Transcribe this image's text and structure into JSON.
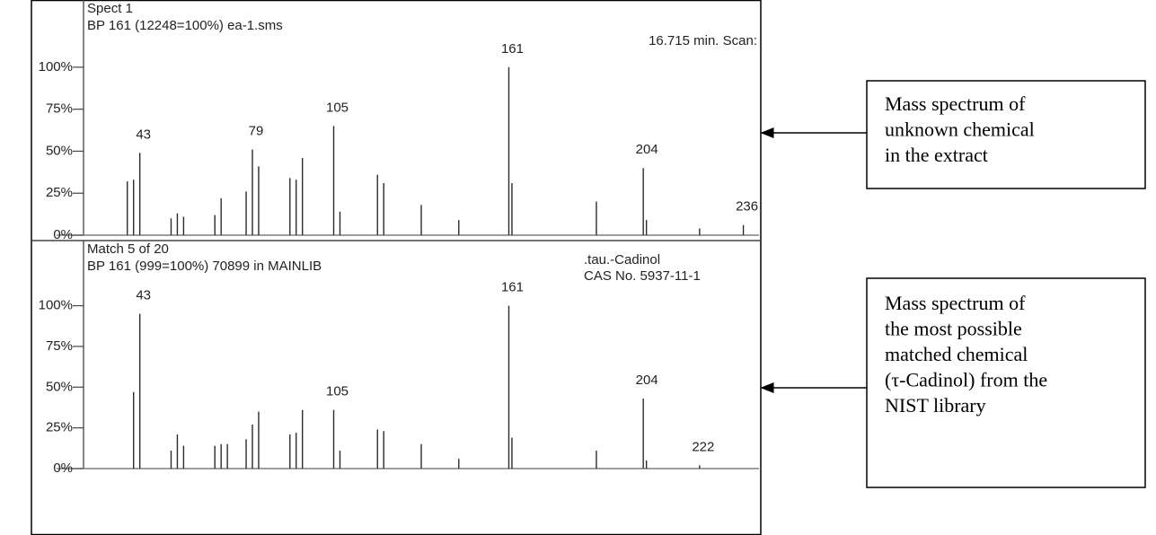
{
  "chart_data": [
    {
      "type": "bar",
      "title": "Spect 1",
      "subtitle": "BP 161 (12248=100%) ea-1.sms",
      "info": [
        "16.715 min. Scan:"
      ],
      "x": [
        39,
        41,
        43,
        53,
        55,
        57,
        67,
        69,
        77,
        79,
        81,
        91,
        93,
        95,
        105,
        107,
        119,
        121,
        133,
        145,
        161,
        162,
        189,
        204,
        205,
        222,
        236
      ],
      "values": [
        32,
        33,
        49,
        10,
        13,
        11,
        12,
        22,
        26,
        51,
        41,
        34,
        33,
        46,
        65,
        14,
        36,
        31,
        18,
        9,
        100,
        31,
        20,
        40,
        9,
        4,
        6
      ],
      "peak_labels": [
        43,
        79,
        105,
        161,
        204,
        236
      ],
      "color": "#2b2b2b",
      "xlim": [
        25,
        241
      ],
      "ylim": [
        0,
        140
      ],
      "yticks": [
        {
          "value": 0,
          "label": "0%"
        },
        {
          "value": 25,
          "label": "25%"
        },
        {
          "value": 50,
          "label": "50%"
        },
        {
          "value": 75,
          "label": "75%"
        },
        {
          "value": 100,
          "label": "100%"
        }
      ]
    },
    {
      "type": "bar",
      "title": "Match 5 of 20",
      "subtitle": "BP 161 (999=100%) 70899 in MAINLIB",
      "info": [
        ".tau.-Cadinol",
        "CAS No. 5937-11-1"
      ],
      "x": [
        41,
        43,
        53,
        55,
        57,
        67,
        69,
        71,
        77,
        79,
        81,
        91,
        93,
        95,
        105,
        107,
        119,
        121,
        133,
        145,
        161,
        162,
        189,
        204,
        205,
        222
      ],
      "values": [
        47,
        95,
        11,
        21,
        14,
        14,
        15,
        15,
        18,
        27,
        35,
        21,
        22,
        36,
        36,
        11,
        24,
        23,
        15,
        6,
        100,
        19,
        11,
        43,
        5,
        2
      ],
      "peak_labels": [
        43,
        105,
        161,
        204,
        222
      ],
      "color": "#2b2b2b",
      "xlim": [
        25,
        241
      ],
      "ylim": [
        0,
        140
      ],
      "yticks": [
        {
          "value": 0,
          "label": "0%"
        },
        {
          "value": 25,
          "label": "25%"
        },
        {
          "value": 50,
          "label": "50%"
        },
        {
          "value": 75,
          "label": "75%"
        },
        {
          "value": 100,
          "label": "100%"
        }
      ]
    }
  ],
  "notes": [
    {
      "lines": [
        "Mass spectrum of",
        "unknown chemical",
        "in the extract"
      ]
    },
    {
      "lines": [
        "Mass spectrum of",
        "the most possible",
        "matched chemical",
        "(τ-Cadinol) from the",
        "NIST library"
      ]
    }
  ]
}
